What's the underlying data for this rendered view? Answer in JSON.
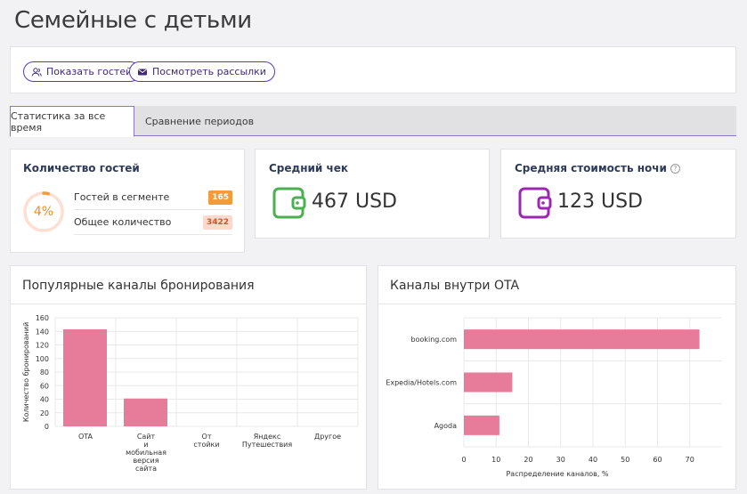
{
  "page": {
    "title": "Семейные с детьми"
  },
  "actions": {
    "show_guests": "Показать гостей",
    "view_mailings": "Посмотреть рассылки"
  },
  "tabs": [
    {
      "label": "Статистика за все время",
      "active": true
    },
    {
      "label": "Сравнение периодов",
      "active": false
    }
  ],
  "guests_card": {
    "title": "Количество гостей",
    "percent": "4%",
    "percent_value": 4,
    "rows": [
      {
        "label": "Гостей в сегменте",
        "value": "165"
      },
      {
        "label": "Общее количество",
        "value": "3422"
      }
    ]
  },
  "avg_check": {
    "title": "Средний чек",
    "value": "467 USD",
    "icon": "wallet-icon",
    "color": "#4caf50"
  },
  "avg_night": {
    "title": "Средняя стоимость ночи",
    "value": "123 USD",
    "icon": "wallet-icon",
    "color": "#9c27b0",
    "help_icon": "?"
  },
  "colors": {
    "accent": "#5a3e9e",
    "bar": "#e77c9a",
    "orange": "#f39a3a"
  },
  "chart_data": [
    {
      "type": "bar",
      "title": "Популярные каналы бронирования",
      "categories": [
        [
          "OTA"
        ],
        [
          "Сайт",
          "и",
          "мобильная",
          "версия",
          "сайта"
        ],
        [
          "От",
          "стойки"
        ],
        [
          "Яндекс",
          "Путешествия"
        ],
        [
          "Другое"
        ]
      ],
      "values": [
        143,
        41,
        0,
        0,
        0
      ],
      "ylabel": "Количество бронирований",
      "xlabel": "",
      "ylim": [
        0,
        160
      ],
      "yticks": [
        0,
        20,
        40,
        60,
        80,
        100,
        120,
        140,
        160
      ],
      "grid": true
    },
    {
      "type": "bar",
      "orientation": "horizontal",
      "title": "Каналы внутри OTA",
      "categories": [
        "booking.com",
        "Expedia/Hotels.com",
        "Agoda"
      ],
      "values": [
        73,
        15,
        11
      ],
      "xlabel": "Распределение каналов, %",
      "xlim": [
        0,
        80
      ],
      "xticks": [
        0,
        10,
        20,
        30,
        40,
        50,
        60,
        70
      ],
      "grid": true
    }
  ]
}
